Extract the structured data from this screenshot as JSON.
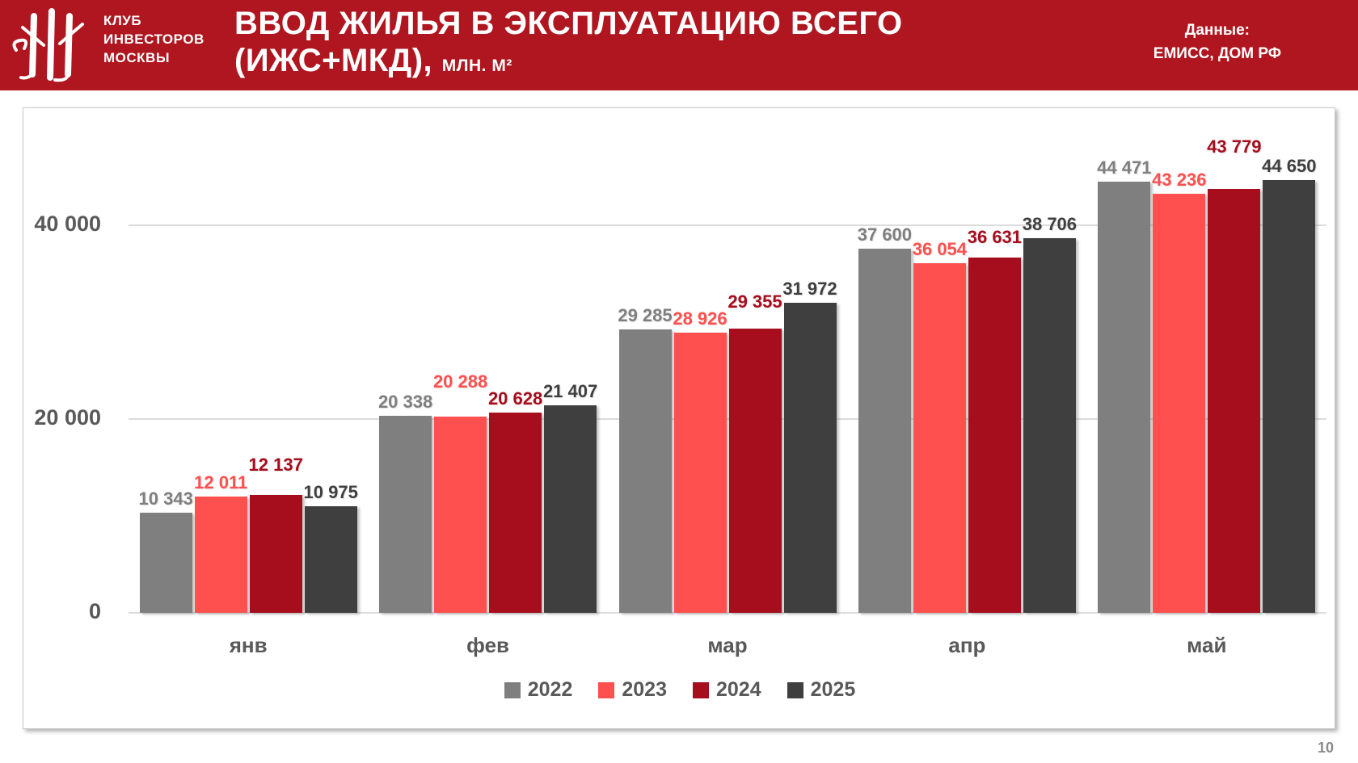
{
  "header": {
    "club_lines": [
      "КЛУБ",
      "ИНВЕСТОРОВ",
      "МОСКВЫ"
    ],
    "title_line1": "ВВОД ЖИЛЬЯ В ЭКСПЛУАТАЦИЮ ВСЕГО",
    "title_line2": "(ИЖС+МКД),",
    "title_unit": "МЛН. М²",
    "source_line1": "Данные:",
    "source_line2": "ЕМИСС, ДОМ РФ",
    "background_color": "#AF161F"
  },
  "chart_data": {
    "type": "bar",
    "categories": [
      "янв",
      "фев",
      "мар",
      "апр",
      "май"
    ],
    "series": [
      {
        "name": "2022",
        "color": "#7F7F7F",
        "values": [
          10343,
          20338,
          29285,
          37600,
          44471
        ]
      },
      {
        "name": "2023",
        "color": "#FF5050",
        "values": [
          12011,
          20288,
          28926,
          36054,
          43236
        ]
      },
      {
        "name": "2024",
        "color": "#A60D1D",
        "values": [
          12137,
          20628,
          29355,
          36631,
          43779
        ]
      },
      {
        "name": "2025",
        "color": "#3F3F3F",
        "values": [
          10975,
          21407,
          31972,
          38706,
          44650
        ]
      }
    ],
    "y_ticks": [
      0,
      20000,
      40000
    ],
    "ylim": [
      0,
      46000
    ],
    "grid": true,
    "legend_position": "bottom",
    "axis_label_color": "#595959",
    "gridline_color": "#DCDCDC"
  },
  "footer": {
    "page_number": "10"
  }
}
